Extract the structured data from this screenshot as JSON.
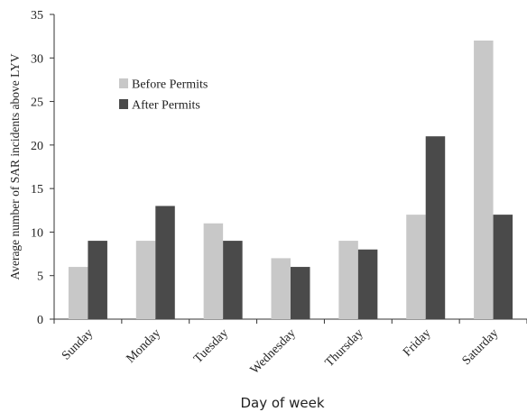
{
  "chart_data": {
    "type": "bar",
    "categories": [
      "Sunday",
      "Monday",
      "Tuesday",
      "Wednesday",
      "Thursday",
      "Friday",
      "Saturday"
    ],
    "series": [
      {
        "name": "Before Permits",
        "values": [
          6,
          9,
          11,
          7,
          9,
          12,
          32
        ],
        "color": "#c8c8c8"
      },
      {
        "name": "After Permits",
        "values": [
          9,
          13,
          9,
          6,
          8,
          21,
          12
        ],
        "color": "#4a4a4a"
      }
    ],
    "title": "",
    "xlabel": "Day of week",
    "ylabel": "Average number of SAR incidents above LYV",
    "ylim": [
      0,
      35
    ],
    "yticks": [
      0,
      5,
      10,
      15,
      20,
      25,
      30,
      35
    ],
    "grid": false,
    "legend_position": "top-left"
  }
}
